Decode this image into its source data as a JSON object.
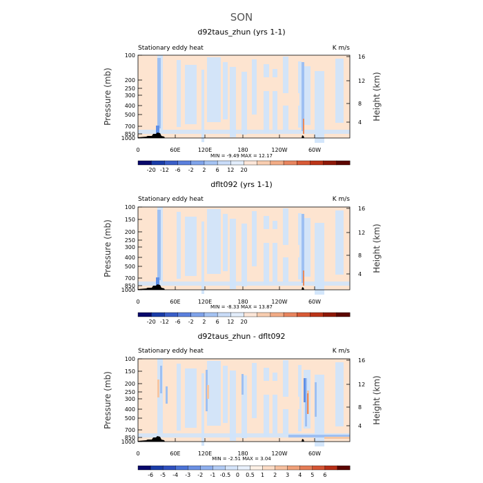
{
  "suptitle": "SON",
  "chart_data": [
    {
      "type": "heatmap",
      "title": "d92taus_zhun (yrs 1-1)",
      "left_label": "Stationary eddy heat",
      "right_label": "K m/s",
      "xlabel": "",
      "ylabel": "Pressure (mb)",
      "ylabel_right": "Height (km)",
      "x_ticks": [
        "0",
        "60E",
        "120E",
        "180",
        "120W",
        "60W"
      ],
      "y_ticks": [
        "100",
        "200",
        "250",
        "300",
        "400",
        "500",
        "700",
        "850",
        "1000"
      ],
      "y_right_ticks": [
        "16",
        "12",
        "8",
        "4"
      ],
      "min_max_text": "MIN =   -9.49   MAX =  12.17",
      "colorbar_labels": [
        "-20",
        "-12",
        "-6",
        "-2",
        "2",
        "6",
        "12",
        "20"
      ]
    },
    {
      "type": "heatmap",
      "title": "dflt092 (yrs 1-1)",
      "left_label": "Stationary eddy heat",
      "right_label": "K m/s",
      "xlabel": "",
      "ylabel": "Pressure (mb)",
      "ylabel_right": "Height (km)",
      "x_ticks": [
        "0",
        "60E",
        "120E",
        "180",
        "120W",
        "60W"
      ],
      "y_ticks": [
        "100",
        "150",
        "200",
        "250",
        "300",
        "400",
        "500",
        "700",
        "850",
        "1000"
      ],
      "y_right_ticks": [
        "16",
        "12",
        "8",
        "4"
      ],
      "min_max_text": "MIN =   -8.33   MAX =  13.87",
      "colorbar_labels": [
        "-20",
        "-12",
        "-6",
        "-2",
        "2",
        "6",
        "12",
        "20"
      ]
    },
    {
      "type": "heatmap",
      "title": "d92taus_zhun - dflt092",
      "left_label": "Stationary eddy heat",
      "right_label": "K m/s",
      "xlabel": "",
      "ylabel": "Pressure (mb)",
      "ylabel_right": "Height (km)",
      "x_ticks": [
        "0",
        "60E",
        "120E",
        "180",
        "120W",
        "60W"
      ],
      "y_ticks": [
        "100",
        "150",
        "200",
        "250",
        "300",
        "400",
        "500",
        "700",
        "850",
        "1000"
      ],
      "y_right_ticks": [
        "16",
        "12",
        "8",
        "4"
      ],
      "min_max_text": "MIN =   -2.51   MAX =   3.04",
      "colorbar_labels": [
        "-6",
        "-5",
        "-4",
        "-3",
        "-2",
        "-1",
        "-0.5",
        "0",
        "0.5",
        "1",
        "2",
        "3",
        "4",
        "5",
        "6"
      ]
    }
  ],
  "colors": {
    "cb_top": [
      "#08086b",
      "#1a3ca8",
      "#3a5ec8",
      "#5b80dd",
      "#7fa3ea",
      "#a5c3f3",
      "#c9dcf8",
      "#e2edfb",
      "#fce6d8",
      "#f8cdb0",
      "#f2ac86",
      "#e8855e",
      "#d85a36",
      "#bb3418",
      "#8e1808",
      "#5c0600"
    ],
    "cb_bottom": [
      "#08086b",
      "#1a3ca8",
      "#2f50bf",
      "#4a72d6",
      "#6a90e3",
      "#8eafee",
      "#b2cbf5",
      "#d4e4fa",
      "#e9f1fc",
      "#fdf1e6",
      "#fcdcc6",
      "#f7c09f",
      "#f0a079",
      "#e57c55",
      "#d45433",
      "#b62e16",
      "#5c0600"
    ],
    "light_blue": "#cfe4fb",
    "light_orange": "#fde4d0",
    "mid_blue": "#9ec0f2",
    "strong_blue": "#5f8fe6",
    "mid_orange": "#f6c6a2",
    "strong_orange": "#ea8a5a",
    "terrain": "#000000"
  }
}
